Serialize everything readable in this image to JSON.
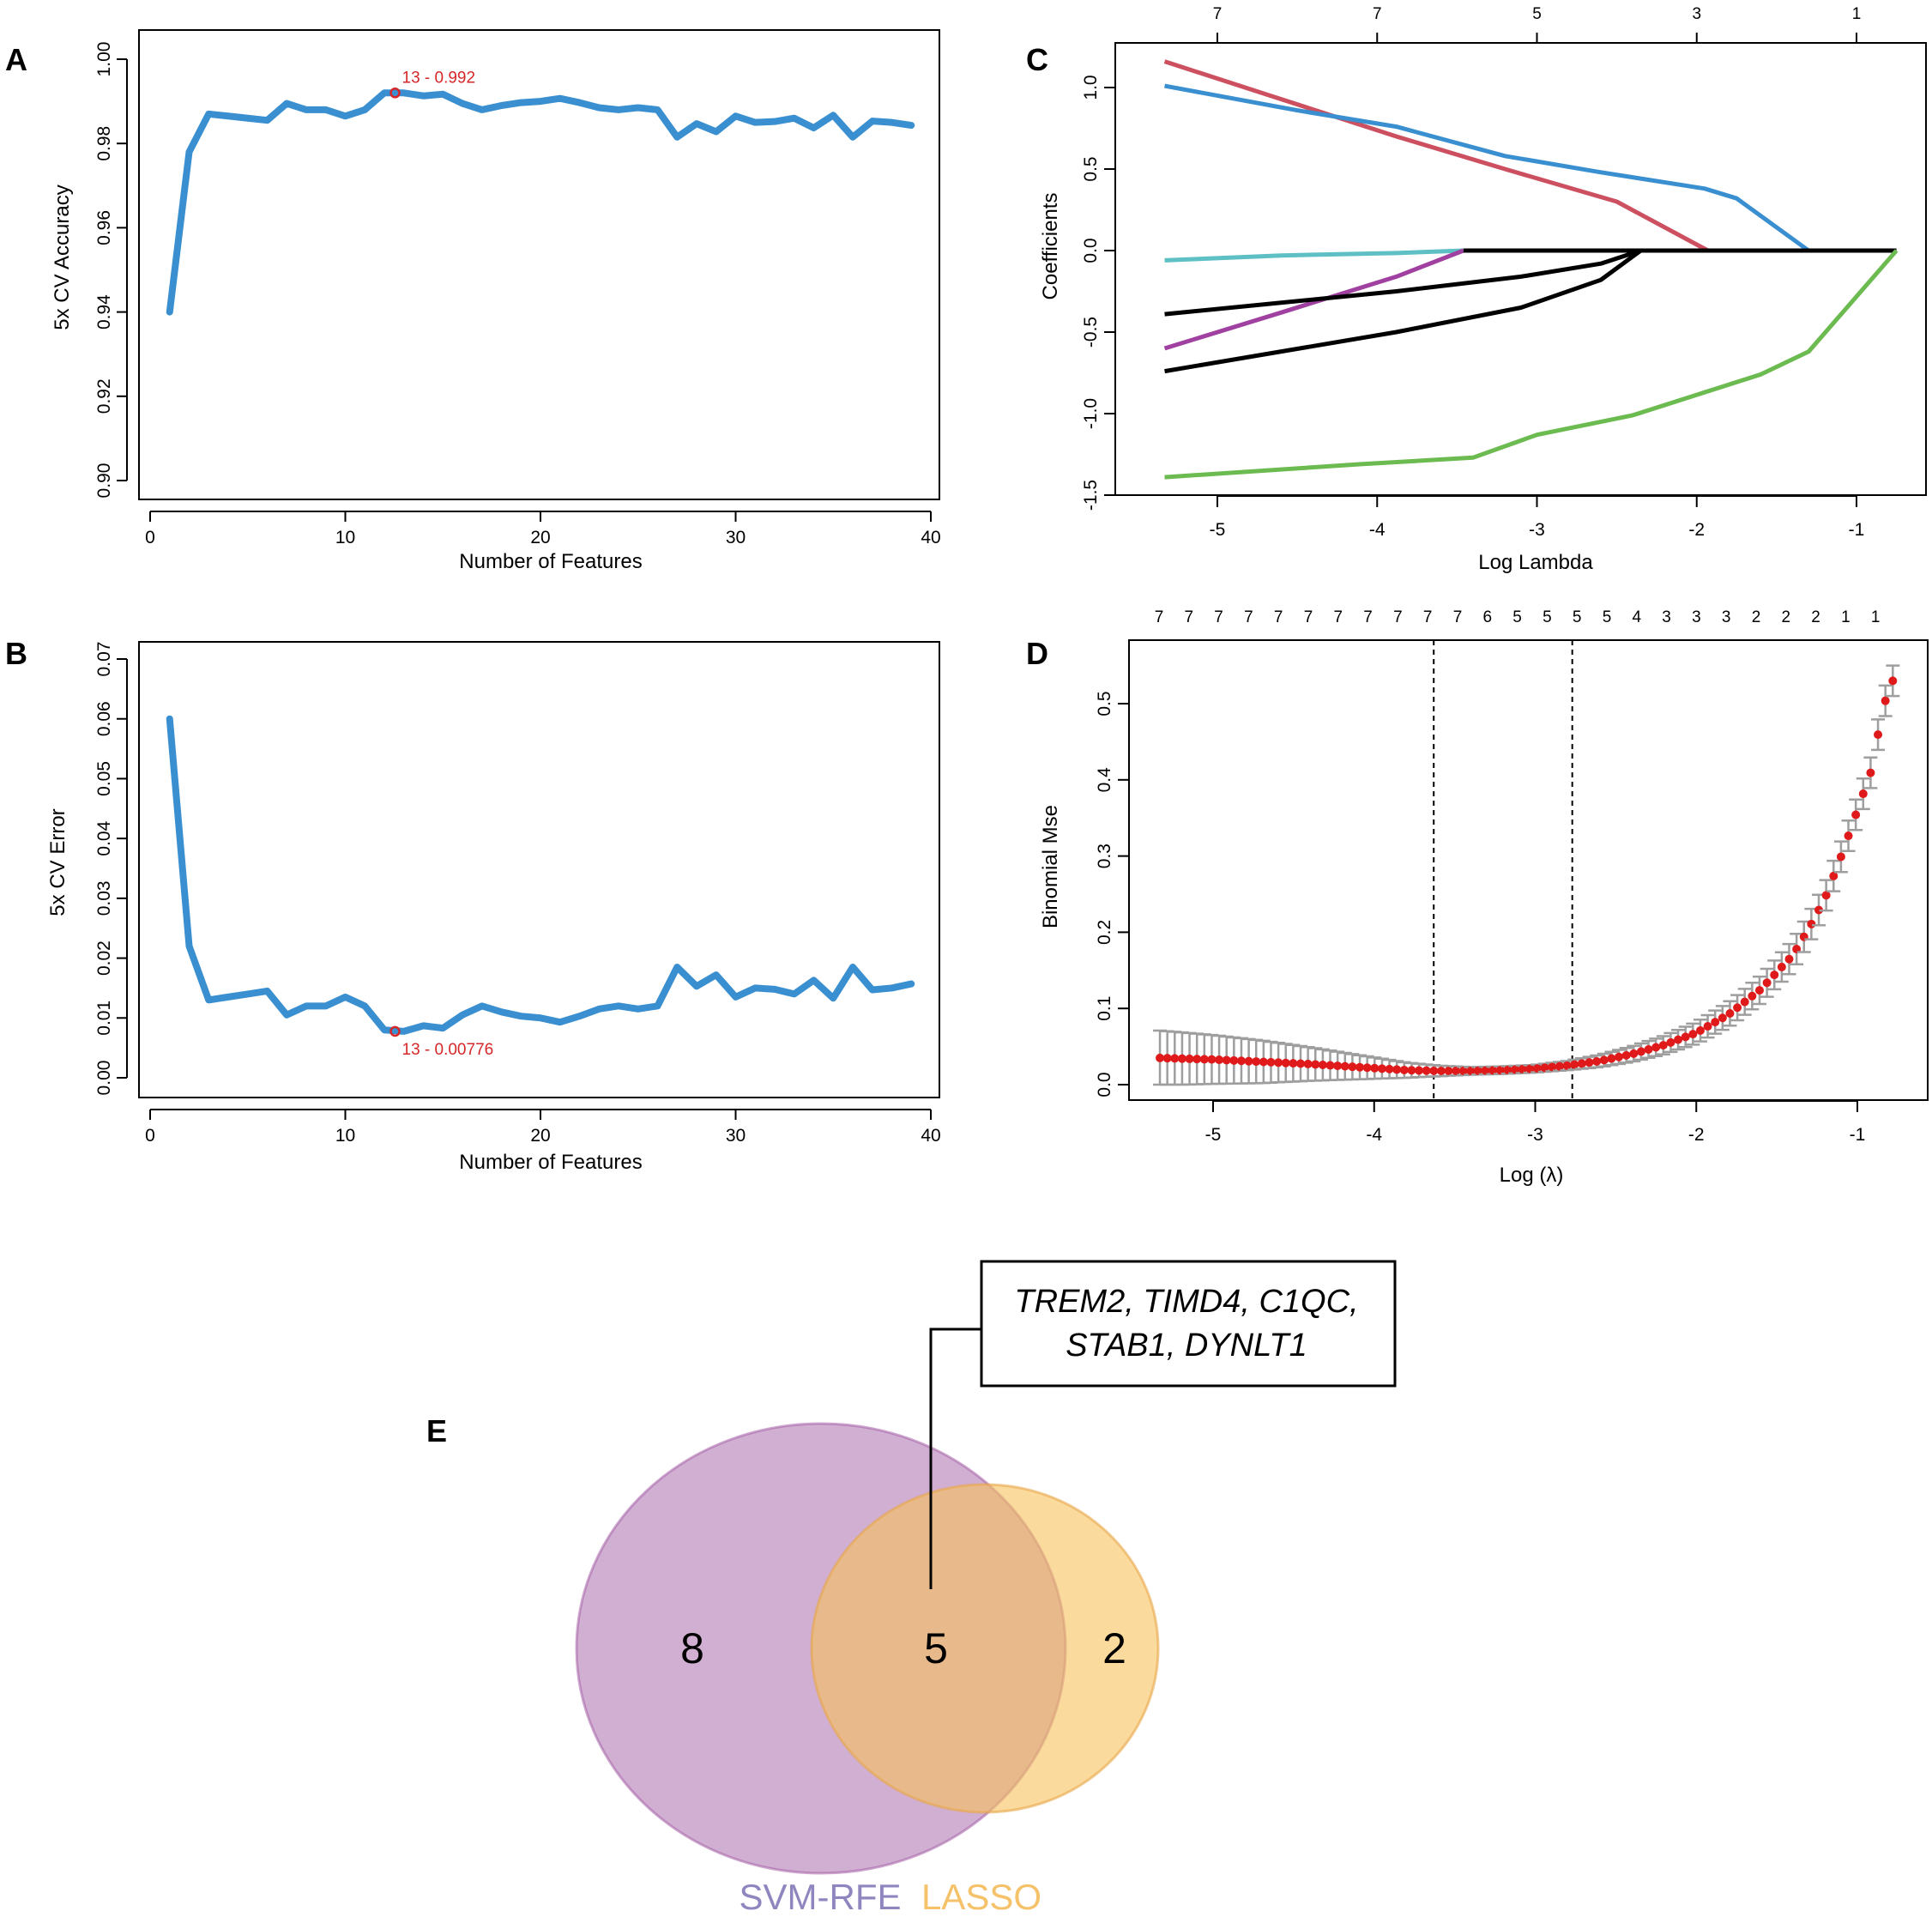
{
  "chart_data": [
    {
      "id": "A",
      "panel_letter": "A",
      "type": "line",
      "xlabel": "Number of Features",
      "ylabel": "5x CV Accuracy",
      "xlim": [
        0,
        40
      ],
      "ylim": [
        0.9,
        1.0
      ],
      "x_ticks": [
        0,
        10,
        20,
        30,
        40
      ],
      "y_ticks": [
        "0.90",
        "0.92",
        "0.94",
        "0.96",
        "0.98",
        "1.00"
      ],
      "color": "#3a8fd0",
      "x": [
        1,
        2,
        3,
        4,
        5,
        6,
        7,
        8,
        9,
        10,
        11,
        12,
        13,
        14,
        15,
        16,
        17,
        18,
        19,
        20,
        21,
        22,
        23,
        24,
        25,
        26,
        27,
        28,
        29,
        30,
        31,
        32,
        33,
        34,
        35,
        36,
        37,
        38,
        39
      ],
      "values": [
        0.94,
        0.978,
        0.987,
        0.9865,
        0.986,
        0.9855,
        0.9895,
        0.988,
        0.988,
        0.9865,
        0.988,
        0.992,
        0.992,
        0.9913,
        0.9917,
        0.9895,
        0.988,
        0.989,
        0.9897,
        0.99,
        0.9907,
        0.9897,
        0.9885,
        0.988,
        0.9885,
        0.988,
        0.9815,
        0.9847,
        0.9828,
        0.9865,
        0.985,
        0.9852,
        0.986,
        0.9837,
        0.9867,
        0.9815,
        0.9853,
        0.985,
        0.9843
      ],
      "highlight": {
        "x": 13,
        "y": 0.992,
        "label": "13 - 0.992"
      }
    },
    {
      "id": "B",
      "panel_letter": "B",
      "type": "line",
      "xlabel": "Number of Features",
      "ylabel": "5x CV Error",
      "xlim": [
        0,
        40
      ],
      "ylim": [
        0,
        0.07
      ],
      "x_ticks": [
        0,
        10,
        20,
        30,
        40
      ],
      "y_ticks": [
        "0.00",
        "0.01",
        "0.02",
        "0.03",
        "0.04",
        "0.05",
        "0.06",
        "0.07"
      ],
      "color": "#3a8fd0",
      "x": [
        1,
        2,
        3,
        4,
        5,
        6,
        7,
        8,
        9,
        10,
        11,
        12,
        13,
        14,
        15,
        16,
        17,
        18,
        19,
        20,
        21,
        22,
        23,
        24,
        25,
        26,
        27,
        28,
        29,
        30,
        31,
        32,
        33,
        34,
        35,
        36,
        37,
        38,
        39
      ],
      "values": [
        0.06,
        0.022,
        0.013,
        0.0135,
        0.014,
        0.0145,
        0.0105,
        0.012,
        0.012,
        0.0135,
        0.012,
        0.008,
        0.00776,
        0.0087,
        0.0083,
        0.0105,
        0.012,
        0.011,
        0.0103,
        0.01,
        0.0093,
        0.0103,
        0.0115,
        0.012,
        0.0115,
        0.012,
        0.0185,
        0.0153,
        0.0172,
        0.0135,
        0.015,
        0.0148,
        0.014,
        0.0163,
        0.0133,
        0.0185,
        0.0147,
        0.015,
        0.0157
      ],
      "highlight": {
        "x": 13,
        "y": 0.00776,
        "label": "13 - 0.00776"
      }
    },
    {
      "id": "C",
      "panel_letter": "C",
      "type": "line",
      "xlabel": "Log Lambda",
      "ylabel": "Coefficients",
      "xlim": [
        -5.75,
        -0.6
      ],
      "ylim": [
        -1.5,
        1.25
      ],
      "x_ticks": [
        -5,
        -4,
        -3,
        -2,
        -1
      ],
      "y_ticks": [
        -1.5,
        -1.0,
        -0.5,
        0.0,
        0.5,
        1.0
      ],
      "top_ticks": {
        "at": [
          -5,
          -4,
          -3,
          -2,
          -1
        ],
        "labels": [
          "7",
          "7",
          "5",
          "3",
          "1"
        ]
      },
      "series": [
        {
          "name": "red",
          "color": "#cc5060",
          "x": [
            -5.33,
            -4.7,
            -3.88,
            -3.2,
            -2.5,
            -1.93
          ],
          "y": [
            1.16,
            0.96,
            0.7,
            0.5,
            0.3,
            0.0
          ]
        },
        {
          "name": "blue",
          "color": "#3a8fd0",
          "x": [
            -5.33,
            -4.5,
            -3.88,
            -3.2,
            -2.6,
            -1.95,
            -1.75,
            -1.3
          ],
          "y": [
            1.01,
            0.86,
            0.76,
            0.58,
            0.48,
            0.38,
            0.32,
            0.0
          ]
        },
        {
          "name": "cyan",
          "color": "#5ec0c4",
          "x": [
            -5.33,
            -4.6,
            -3.88,
            -3.46
          ],
          "y": [
            -0.06,
            -0.03,
            -0.015,
            0.0
          ]
        },
        {
          "name": "purple",
          "color": "#a040a0",
          "x": [
            -5.33,
            -4.6,
            -3.88,
            -3.46
          ],
          "y": [
            -0.6,
            -0.38,
            -0.16,
            0.0
          ]
        },
        {
          "name": "black-1",
          "color": "#000000",
          "x": [
            -5.33,
            -3.88,
            -3.1,
            -2.6,
            -2.35
          ],
          "y": [
            -0.39,
            -0.25,
            -0.16,
            -0.08,
            0.0
          ]
        },
        {
          "name": "black-2",
          "color": "#000000",
          "x": [
            -5.33,
            -3.88,
            -3.1,
            -2.6,
            -2.35
          ],
          "y": [
            -0.74,
            -0.5,
            -0.35,
            -0.18,
            0.0
          ]
        },
        {
          "name": "baseline",
          "color": "#000000",
          "x": [
            -3.46,
            -0.75
          ],
          "y": [
            0.0,
            0.0
          ]
        },
        {
          "name": "green",
          "color": "#6cbb50",
          "x": [
            -5.33,
            -4.1,
            -3.4,
            -3.0,
            -2.4,
            -1.6,
            -1.3,
            -0.75
          ],
          "y": [
            -1.39,
            -1.31,
            -1.27,
            -1.13,
            -1.01,
            -0.76,
            -0.62,
            0.0
          ]
        }
      ]
    },
    {
      "id": "D",
      "panel_letter": "D",
      "type": "scatter",
      "xlabel": "Log (λ)",
      "ylabel": "Binomial Mse",
      "xlim": [
        -5.6,
        -0.6
      ],
      "ylim": [
        -0.02,
        0.57
      ],
      "x_ticks": [
        -5,
        -4,
        -3,
        -2,
        -1
      ],
      "y_ticks": [
        0.0,
        0.1,
        0.2,
        0.3,
        0.4,
        0.5
      ],
      "top_ticks": {
        "at": [
          -5.33,
          -5.12,
          -4.91,
          -4.7,
          -4.49,
          -4.28,
          -4.07,
          -3.86,
          -3.65,
          -3.44,
          -3.23,
          -3.02,
          -2.81,
          -2.6,
          -2.39,
          -2.18,
          -1.97,
          -1.76,
          -1.55,
          -1.34,
          -1.13,
          -0.92
        ],
        "labels": [
          "7",
          "7",
          "7",
          "7",
          "7",
          "7",
          "7",
          "7",
          "7",
          "7",
          "7",
          "6",
          "5",
          "5",
          "5",
          "5",
          "4",
          "3",
          "3",
          "3",
          "2",
          "2"
        ]
      },
      "top_ticks_tail": [
        "2",
        "1",
        "1"
      ],
      "vlines": [
        -3.63,
        -2.77
      ],
      "point_color": "#e01a1a",
      "errorbar_color": "#9e9e9e",
      "n_points": 100,
      "x_range": [
        -5.33,
        -0.78
      ],
      "curve": "mse = 0.016 + 0.019 * exp(-((x+5.33)/1.4)^2)*0 + ... estimated shape",
      "points_x": [
        -5.33,
        -5.0,
        -4.7,
        -4.4,
        -4.1,
        -3.8,
        -3.6,
        -3.4,
        -3.2,
        -3.0,
        -2.8,
        -2.6,
        -2.4,
        -2.2,
        -2.0,
        -1.8,
        -1.6,
        -1.4,
        -1.3,
        -1.2,
        -1.1,
        -1.0,
        -0.9,
        -0.85,
        -0.78
      ],
      "points_y": [
        0.035,
        0.033,
        0.03,
        0.027,
        0.023,
        0.019,
        0.018,
        0.018,
        0.019,
        0.021,
        0.025,
        0.031,
        0.04,
        0.052,
        0.068,
        0.092,
        0.125,
        0.17,
        0.205,
        0.245,
        0.3,
        0.36,
        0.42,
        0.49,
        0.53
      ],
      "err_y": [
        0.036,
        0.032,
        0.028,
        0.022,
        0.016,
        0.01,
        0.007,
        0.005,
        0.005,
        0.005,
        0.006,
        0.008,
        0.01,
        0.012,
        0.014,
        0.016,
        0.018,
        0.02,
        0.02,
        0.02,
        0.02,
        0.02,
        0.02,
        0.02,
        0.02
      ]
    }
  ],
  "venn": {
    "panel_letter": "E",
    "left_count": "8",
    "overlap_count": "5",
    "right_count": "2",
    "left_label": "SVM-RFE",
    "right_label": "LASSO",
    "left_color": "#a45fa5",
    "right_color": "#f6c25c",
    "left_label_color": "#8f86c0",
    "right_label_color": "#f5c26a",
    "gene_line_1": "TREM2, TIMD4, C1QC,",
    "gene_line_2": "STAB1, DYNLT1"
  }
}
